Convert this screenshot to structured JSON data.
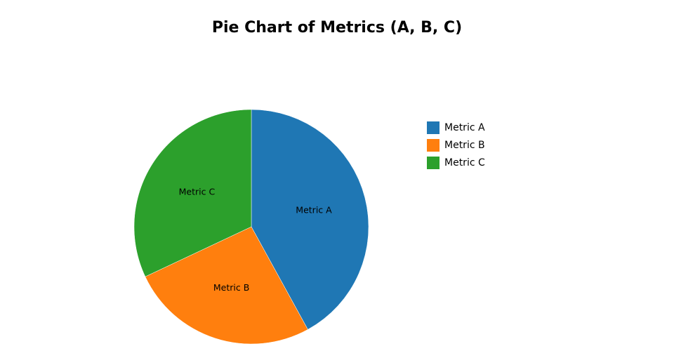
{
  "chart_data": {
    "type": "pie",
    "title": "Pie Chart of Metrics (A, B, C)",
    "categories": [
      "Metric A",
      "Metric B",
      "Metric C"
    ],
    "values": [
      42,
      26,
      32
    ],
    "colors": [
      "#1f77b4",
      "#ff7f0e",
      "#2ca02c"
    ],
    "legend_position": "right",
    "slice_labels": "category-inside"
  }
}
